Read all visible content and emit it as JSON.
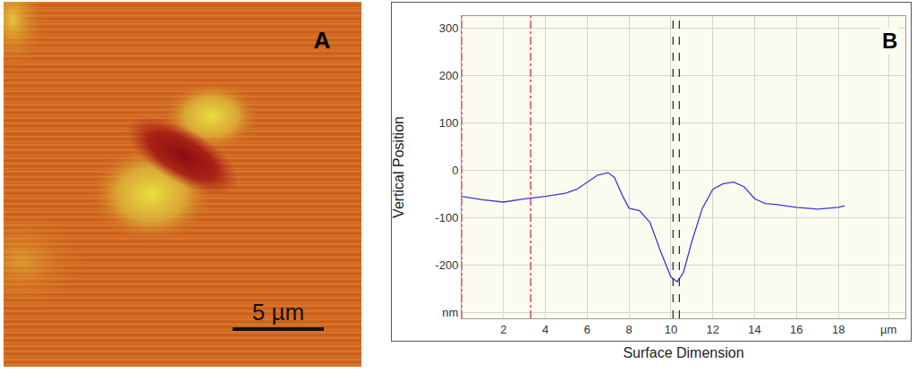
{
  "image_panel": {
    "panel_label": "A",
    "scale_bar_label": "5 µm"
  },
  "chart_data": {
    "type": "line",
    "panel_label": "B",
    "x_label": "Surface Dimension",
    "y_label": "Vertical Position",
    "x": [
      0,
      1,
      2,
      3,
      4,
      5,
      5.5,
      6,
      6.5,
      7,
      7.3,
      7.7,
      8,
      8.5,
      9,
      9.5,
      10,
      10.3,
      10.6,
      11,
      11.5,
      12,
      12.5,
      13,
      13.5,
      14,
      14.5,
      15,
      16,
      17,
      17.5,
      18,
      18.3
    ],
    "values": [
      -55,
      -62,
      -67,
      -60,
      -55,
      -48,
      -40,
      -25,
      -10,
      -5,
      -15,
      -55,
      -80,
      -85,
      -110,
      -170,
      -225,
      -235,
      -215,
      -150,
      -80,
      -40,
      -28,
      -25,
      -35,
      -60,
      -70,
      -72,
      -78,
      -82,
      -80,
      -78,
      -75
    ],
    "color": "#3a3ad0",
    "xlim": [
      0,
      21.2
    ],
    "ylim": [
      -312,
      325
    ],
    "xticks": [
      2,
      4,
      6,
      8,
      10,
      12,
      14,
      16,
      18,
      {
        "value": 20.4,
        "label": "µm"
      }
    ],
    "yticks": [
      {
        "value": -300,
        "label": "nm"
      },
      -200,
      -100,
      0,
      100,
      200,
      300
    ],
    "grid": true,
    "vlines": [
      {
        "x": 0,
        "color": "#cc2222",
        "line_style": "dashdot"
      },
      {
        "x": 3.3,
        "color": "#cc2222",
        "line_style": "dashdot"
      },
      {
        "x": 10.1,
        "color": "#222222",
        "line_style": "dash"
      },
      {
        "x": 10.4,
        "color": "#222222",
        "line_style": "dash"
      }
    ]
  }
}
